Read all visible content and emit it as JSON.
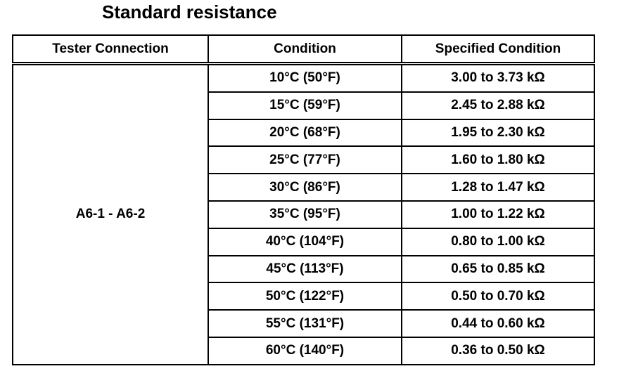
{
  "title": "Standard resistance",
  "table": {
    "headers": [
      "Tester Connection",
      "Condition",
      "Specified Condition"
    ],
    "connection": "A6-1 - A6-2",
    "rows": [
      [
        "10°C (50°F)",
        "3.00 to 3.73 kΩ"
      ],
      [
        "15°C (59°F)",
        "2.45 to 2.88 kΩ"
      ],
      [
        "20°C (68°F)",
        "1.95 to 2.30 kΩ"
      ],
      [
        "25°C (77°F)",
        "1.60 to 1.80 kΩ"
      ],
      [
        "30°C (86°F)",
        "1.28 to 1.47 kΩ"
      ],
      [
        "35°C (95°F)",
        "1.00 to 1.22 kΩ"
      ],
      [
        "40°C (104°F)",
        "0.80 to 1.00 kΩ"
      ],
      [
        "45°C (113°F)",
        "0.65 to 0.85 kΩ"
      ],
      [
        "50°C (122°F)",
        "0.50 to 0.70 kΩ"
      ],
      [
        "55°C (131°F)",
        "0.44 to 0.60 kΩ"
      ],
      [
        "60°C (140°F)",
        "0.36 to 0.50 kΩ"
      ]
    ]
  }
}
